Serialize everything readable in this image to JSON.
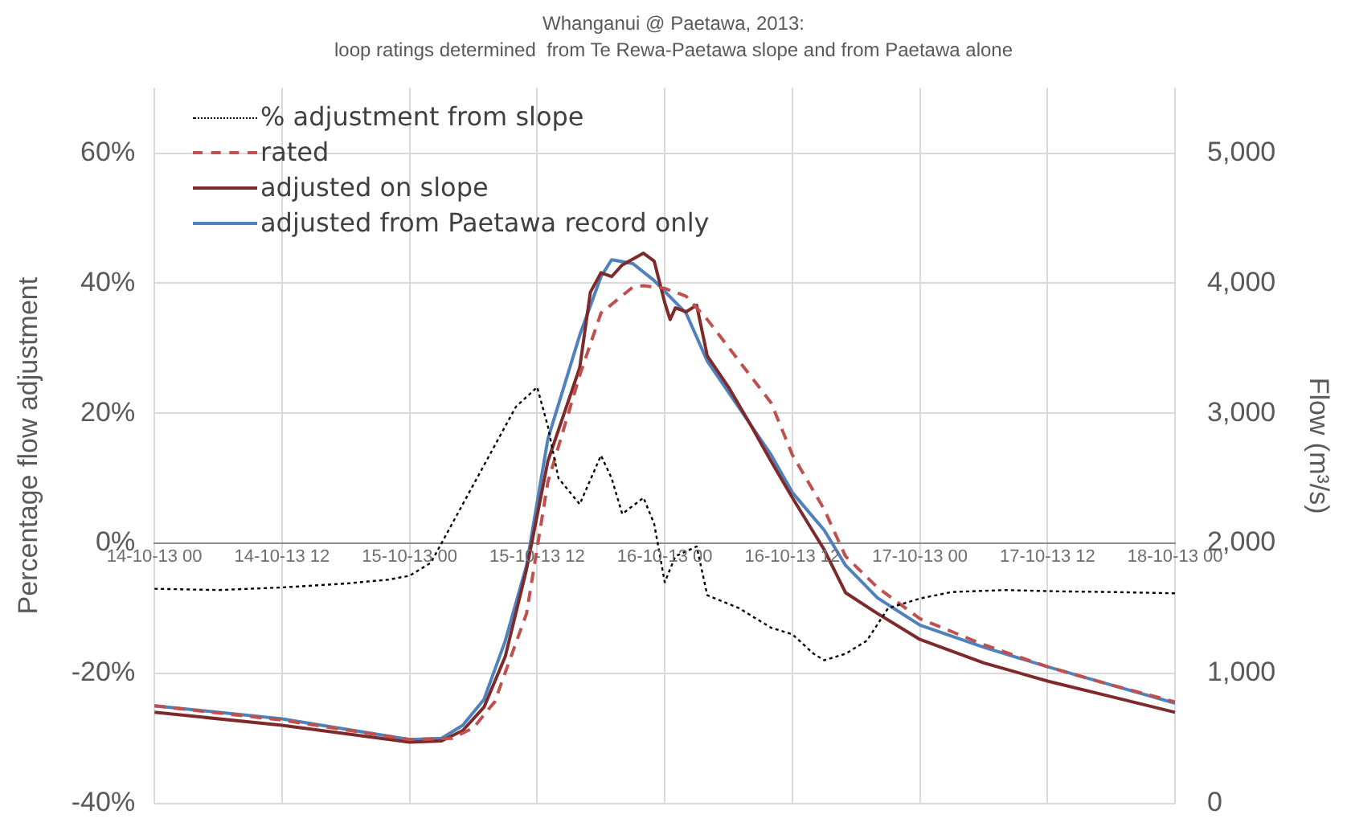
{
  "chart_data": {
    "type": "line",
    "title": "Whanganui @ Paetawa, 2013:",
    "subtitle": "loop ratings determined  from Te Rewa-Paetawa slope and from Paetawa alone",
    "ylabel": "Percentage flow adjustment",
    "y2label": "Flow (m³/s)",
    "xlim": [
      "2013-10-14T00:00",
      "2013-10-18T00:00"
    ],
    "xticks": [
      {
        "value": "2013-10-14T00:00",
        "label": "14-10-13 00"
      },
      {
        "value": "2013-10-14T12:00",
        "label": "14-10-13 12"
      },
      {
        "value": "2013-10-15T00:00",
        "label": "15-10-13 00"
      },
      {
        "value": "2013-10-15T12:00",
        "label": "15-10-13 12"
      },
      {
        "value": "2013-10-16T00:00",
        "label": "16-10-13 00"
      },
      {
        "value": "2013-10-16T12:00",
        "label": "16-10-13 12"
      },
      {
        "value": "2013-10-17T00:00",
        "label": "17-10-13 00"
      },
      {
        "value": "2013-10-17T12:00",
        "label": "17-10-13 12"
      },
      {
        "value": "2013-10-18T00:00",
        "label": "18-10-13 00"
      }
    ],
    "ylim": [
      -40,
      70
    ],
    "yticks": [
      {
        "value": -40,
        "label": "-40%"
      },
      {
        "value": -20,
        "label": "-20%"
      },
      {
        "value": 0,
        "label": "0%"
      },
      {
        "value": 20,
        "label": "20%"
      },
      {
        "value": 40,
        "label": "40%"
      },
      {
        "value": 60,
        "label": "60%"
      }
    ],
    "y2lim": [
      0,
      5500
    ],
    "y2ticks": [
      {
        "value": 0,
        "label": "0"
      },
      {
        "value": 1000,
        "label": "1,000"
      },
      {
        "value": 2000,
        "label": "2,000"
      },
      {
        "value": 3000,
        "label": "3,000"
      },
      {
        "value": 4000,
        "label": "4,000"
      },
      {
        "value": 5000,
        "label": "5,000"
      }
    ],
    "grid": true,
    "legend": "top left",
    "marker": "none",
    "series": [
      {
        "name": "% adjustment from slope",
        "color": "#000000",
        "line_style": "dotted",
        "x": [
          "2013-10-14T00:00",
          "2013-10-14T06:00",
          "2013-10-14T12:00",
          "2013-10-14T18:00",
          "2013-10-14T22:00",
          "2013-10-15T00:00",
          "2013-10-15T02:00",
          "2013-10-15T03:00",
          "2013-10-15T05:00",
          "2013-10-15T06:00",
          "2013-10-15T08:00",
          "2013-10-15T10:00",
          "2013-10-15T12:00",
          "2013-10-15T13:00",
          "2013-10-15T14:00",
          "2013-10-15T15:00",
          "2013-10-15T16:00",
          "2013-10-15T18:00",
          "2013-10-15T19:00",
          "2013-10-15T20:00",
          "2013-10-15T22:00",
          "2013-10-15T23:00",
          "2013-10-16T00:00",
          "2013-10-16T01:00",
          "2013-10-16T03:00",
          "2013-10-16T04:00",
          "2013-10-16T07:00",
          "2013-10-16T10:00",
          "2013-10-16T12:00",
          "2013-10-16T14:00",
          "2013-10-16T15:00",
          "2013-10-16T17:00",
          "2013-10-16T19:00",
          "2013-10-16T21:00",
          "2013-10-17T00:00",
          "2013-10-17T03:00",
          "2013-10-17T08:00",
          "2013-10-17T13:00",
          "2013-10-17T18:00",
          "2013-10-18T00:00"
        ],
        "values": [
          -7,
          -7.2,
          -6.8,
          -6.2,
          -5.6,
          -5,
          -3,
          0,
          6,
          9,
          15,
          21,
          24,
          18,
          10,
          8,
          6,
          13.5,
          10,
          4.5,
          7,
          3,
          -6,
          -2,
          -0.5,
          -8,
          -10,
          -13,
          -14,
          -17,
          -18,
          -17,
          -15,
          -10,
          -8.5,
          -7.5,
          -7.2,
          -7.4,
          -7.5,
          -7.7
        ]
      },
      {
        "name": "rated",
        "color": "#c0504d",
        "line_style": "dashed",
        "axis": "y2",
        "x": [
          "2013-10-14T00:00",
          "2013-10-14T12:00",
          "2013-10-15T00:00",
          "2013-10-15T04:00",
          "2013-10-15T06:00",
          "2013-10-15T08:00",
          "2013-10-15T11:00",
          "2013-10-15T13:00",
          "2013-10-15T16:00",
          "2013-10-15T18:00",
          "2013-10-15T21:00",
          "2013-10-15T22:00",
          "2013-10-16T00:00",
          "2013-10-16T02:00",
          "2013-10-16T04:00",
          "2013-10-16T07:00",
          "2013-10-16T10:00",
          "2013-10-16T12:00",
          "2013-10-16T15:00",
          "2013-10-16T17:00",
          "2013-10-16T20:00",
          "2013-10-17T00:00",
          "2013-10-17T06:00",
          "2013-10-17T12:00",
          "2013-10-17T18:00",
          "2013-10-18T00:00"
        ],
        "values": [
          750,
          640,
          490,
          500,
          580,
          780,
          1460,
          2470,
          3290,
          3770,
          3970,
          3980,
          3960,
          3900,
          3720,
          3400,
          3080,
          2680,
          2260,
          1900,
          1660,
          1420,
          1220,
          1050,
          910,
          780
        ]
      },
      {
        "name": "adjusted on slope",
        "color": "#7f2a2a",
        "line_style": "solid",
        "axis": "y2",
        "x": [
          "2013-10-14T00:00",
          "2013-10-14T12:00",
          "2013-10-15T00:00",
          "2013-10-15T03:00",
          "2013-10-15T05:00",
          "2013-10-15T07:00",
          "2013-10-15T09:00",
          "2013-10-15T11:00",
          "2013-10-15T13:00",
          "2013-10-15T16:00",
          "2013-10-15T17:00",
          "2013-10-15T18:00",
          "2013-10-15T19:00",
          "2013-10-15T20:00",
          "2013-10-15T22:00",
          "2013-10-15T23:00",
          "2013-10-16T00:00",
          "2013-10-16T00:30",
          "2013-10-16T01:00",
          "2013-10-16T02:00",
          "2013-10-16T03:00",
          "2013-10-16T04:00",
          "2013-10-16T06:00",
          "2013-10-16T08:00",
          "2013-10-16T10:00",
          "2013-10-16T12:00",
          "2013-10-16T15:00",
          "2013-10-16T17:00",
          "2013-10-16T20:00",
          "2013-10-17T00:00",
          "2013-10-17T06:00",
          "2013-10-17T12:00",
          "2013-10-17T18:00",
          "2013-10-18T00:00"
        ],
        "values": [
          700,
          600,
          470,
          480,
          560,
          740,
          1130,
          1800,
          2630,
          3350,
          3930,
          4080,
          4050,
          4140,
          4230,
          4170,
          3850,
          3720,
          3810,
          3780,
          3830,
          3440,
          3200,
          2920,
          2630,
          2350,
          1950,
          1620,
          1460,
          1260,
          1080,
          940,
          820,
          700
        ]
      },
      {
        "name": "adjusted from Paetawa record only",
        "color": "#4f81bd",
        "line_style": "solid",
        "axis": "y2",
        "x": [
          "2013-10-14T00:00",
          "2013-10-14T12:00",
          "2013-10-15T00:00",
          "2013-10-15T03:00",
          "2013-10-15T05:00",
          "2013-10-15T07:00",
          "2013-10-15T09:00",
          "2013-10-15T11:00",
          "2013-10-15T13:00",
          "2013-10-15T16:00",
          "2013-10-15T18:00",
          "2013-10-15T19:00",
          "2013-10-15T21:00",
          "2013-10-15T23:00",
          "2013-10-16T02:00",
          "2013-10-16T04:00",
          "2013-10-16T07:00",
          "2013-10-16T10:00",
          "2013-10-16T12:00",
          "2013-10-16T15:00",
          "2013-10-16T17:00",
          "2013-10-16T20:00",
          "2013-10-17T00:00",
          "2013-10-17T06:00",
          "2013-10-17T12:00",
          "2013-10-17T18:00",
          "2013-10-18T00:00"
        ],
        "values": [
          750,
          650,
          490,
          500,
          600,
          800,
          1250,
          1830,
          2800,
          3600,
          4050,
          4180,
          4150,
          4020,
          3770,
          3400,
          3040,
          2680,
          2390,
          2100,
          1830,
          1580,
          1370,
          1200,
          1050,
          910,
          770
        ]
      }
    ]
  }
}
